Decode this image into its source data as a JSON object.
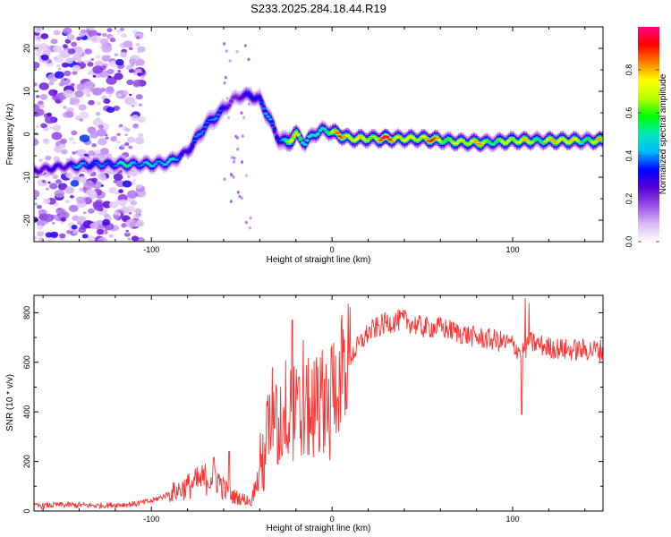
{
  "page_title": "S233.2025.284.18.44.R19",
  "chart_data": [
    {
      "type": "heatmap",
      "title": "S233.2025.284.18.44.R19",
      "xlabel": "Height of straight line (km)",
      "ylabel": "Frequency (Hz)",
      "xlim": [
        -165,
        150
      ],
      "ylim": [
        -25,
        25
      ],
      "x_ticks": [
        -100,
        0,
        100
      ],
      "y_ticks": [
        -20,
        -10,
        0,
        10,
        20
      ],
      "colorbar": {
        "label": "Normalized spectral amplitude",
        "range": [
          0,
          1
        ],
        "ticks": [
          "0.0",
          "0.2",
          "0.4",
          "0.6",
          "0.8"
        ],
        "colors": [
          "#ffffff",
          "#d8b8f8",
          "#9a50e8",
          "#5a00d8",
          "#0000ff",
          "#00b8ff",
          "#00e8b8",
          "#00ff00",
          "#b8ff00",
          "#ffff00",
          "#ff8000",
          "#ff0000",
          "#ff0080"
        ]
      },
      "ridge": {
        "x": [
          -165,
          -150,
          -130,
          -110,
          -100,
          -90,
          -80,
          -70,
          -62,
          -55,
          -50,
          -45,
          -40,
          -35,
          -30,
          -25,
          -20,
          -15,
          -10,
          -5,
          0,
          10,
          30,
          50,
          70,
          85,
          100,
          120,
          140,
          150
        ],
        "y": [
          -8.5,
          -7.5,
          -7,
          -7,
          -7,
          -6.5,
          -4,
          2,
          5,
          8,
          9,
          9,
          8,
          4,
          -1,
          -2,
          0,
          -2,
          0,
          1,
          0.5,
          -1,
          -1,
          -1,
          -1.8,
          -2,
          -1.5,
          -1.5,
          -1.5,
          -1.5
        ],
        "amplitude": [
          0.3,
          0.4,
          0.5,
          0.55,
          0.6,
          0.5,
          0.45,
          0.5,
          0.4,
          0.35,
          0.3,
          0.4,
          0.4,
          0.5,
          0.55,
          0.7,
          0.9,
          0.6,
          0.6,
          0.8,
          0.9,
          0.95,
          1.0,
          0.95,
          0.9,
          0.85,
          0.85,
          0.9,
          0.9,
          0.85
        ]
      },
      "noise_region": [
        -165,
        -105
      ]
    },
    {
      "type": "line",
      "xlabel": "Height of straight line (km)",
      "ylabel": "SNR (10 * v/v)",
      "xlim": [
        -165,
        150
      ],
      "ylim": [
        0,
        870
      ],
      "x_ticks": [
        -100,
        0,
        100
      ],
      "y_ticks": [
        0,
        200,
        400,
        600,
        800
      ],
      "color": "#ff3030",
      "series": [
        {
          "name": "SNR",
          "x": [
            -165,
            -150,
            -130,
            -110,
            -100,
            -90,
            -80,
            -70,
            -65,
            -60,
            -55,
            -50,
            -45,
            -40,
            -35,
            -30,
            -25,
            -20,
            -15,
            -10,
            -5,
            0,
            10,
            20,
            30,
            40,
            50,
            60,
            70,
            80,
            90,
            100,
            105,
            110,
            120,
            130,
            140,
            150
          ],
          "y": [
            20,
            25,
            22,
            28,
            40,
            70,
            100,
            130,
            150,
            90,
            60,
            50,
            40,
            150,
            330,
            330,
            430,
            380,
            400,
            420,
            450,
            500,
            620,
            720,
            760,
            770,
            740,
            740,
            720,
            700,
            690,
            670,
            640,
            680,
            660,
            650,
            650,
            650
          ]
        }
      ],
      "spikes": [
        [
          -57,
          240
        ],
        [
          -33,
          580
        ],
        [
          -22,
          770
        ],
        [
          -16,
          690
        ],
        [
          105,
          390
        ],
        [
          107,
          860
        ],
        [
          109,
          840
        ]
      ]
    }
  ]
}
